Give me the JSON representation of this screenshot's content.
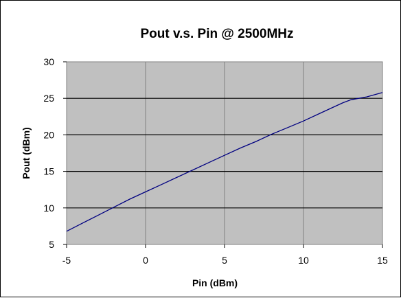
{
  "chart_data": {
    "type": "line",
    "title": "Pout v.s. Pin @ 2500MHz",
    "xlabel": "Pin (dBm)",
    "ylabel": "Pout (dBm)",
    "xlim": [
      -5,
      15
    ],
    "ylim": [
      5,
      30
    ],
    "xticks": [
      -5,
      0,
      5,
      10,
      15
    ],
    "yticks": [
      5,
      10,
      15,
      20,
      25,
      30
    ],
    "grid": true,
    "legend": "none",
    "colors": {
      "plot_background": "#c0c0c0",
      "line": "#000080",
      "grid": "#000000"
    },
    "series": [
      {
        "x": [
          -5,
          -4,
          -3,
          -2,
          -1,
          0,
          1,
          2,
          3,
          4,
          5,
          6,
          7,
          8,
          9,
          10,
          11,
          12,
          12.5,
          13,
          13.5,
          14,
          15
        ],
        "y": [
          6.8,
          7.9,
          9.0,
          10.1,
          11.2,
          12.2,
          13.2,
          14.2,
          15.2,
          16.2,
          17.2,
          18.2,
          19.1,
          20.1,
          21.0,
          21.9,
          22.9,
          23.9,
          24.4,
          24.8,
          25.0,
          25.2,
          25.8
        ]
      }
    ]
  }
}
